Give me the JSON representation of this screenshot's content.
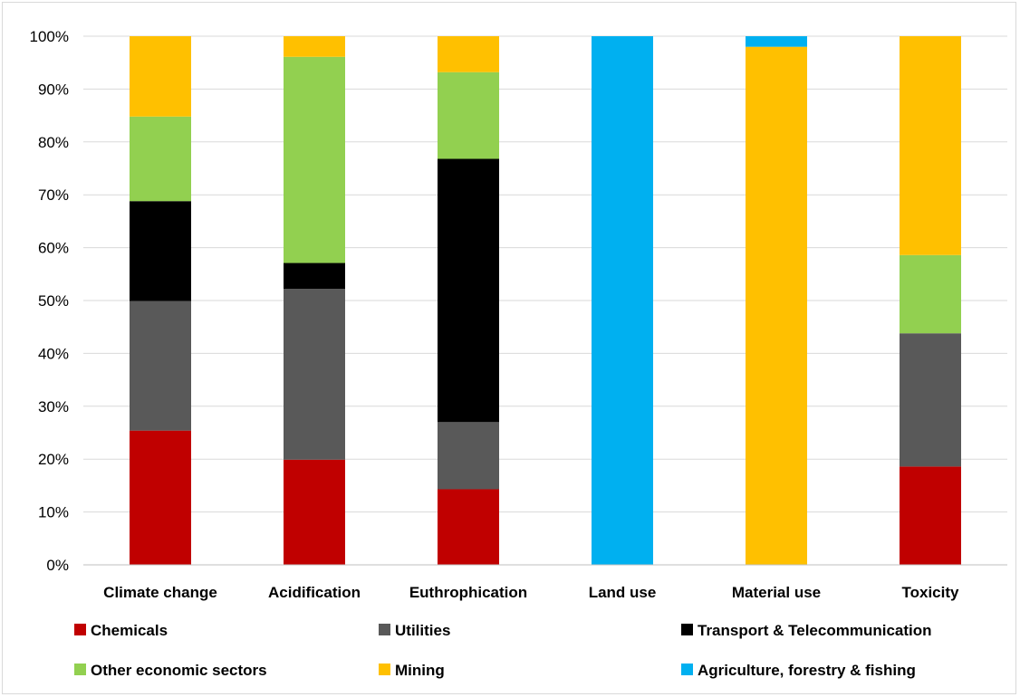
{
  "chart_data": {
    "type": "bar",
    "stacked": true,
    "categories": [
      "Climate change",
      "Acidification",
      "Euthrophication",
      "Land use",
      "Material use",
      "Toxicity"
    ],
    "series": [
      {
        "name": "Chemicals",
        "color": "#C00000",
        "values": [
          25.4,
          19.9,
          14.3,
          0,
          0,
          18.6
        ]
      },
      {
        "name": "Utilities",
        "color": "#595959",
        "values": [
          24.5,
          32.3,
          12.7,
          0,
          0,
          25.2
        ]
      },
      {
        "name": "Transport & Telecommunication",
        "color": "#000000",
        "values": [
          18.9,
          4.9,
          49.8,
          0,
          0,
          0
        ]
      },
      {
        "name": "Other economic sectors",
        "color": "#92D050",
        "values": [
          16.0,
          39.0,
          16.4,
          0,
          0,
          14.8
        ]
      },
      {
        "name": "Mining",
        "color": "#FFC000",
        "values": [
          15.2,
          3.9,
          6.8,
          0,
          98.0,
          41.4
        ]
      },
      {
        "name": "Agriculture, forestry & fishing",
        "color": "#00B0F0",
        "values": [
          0,
          0,
          0,
          100,
          2.0,
          0
        ]
      }
    ],
    "y_ticks": [
      "0%",
      "10%",
      "20%",
      "30%",
      "40%",
      "50%",
      "60%",
      "70%",
      "80%",
      "90%",
      "100%"
    ],
    "ylim": [
      0,
      100
    ],
    "grid": true,
    "legend_position": "bottom"
  }
}
